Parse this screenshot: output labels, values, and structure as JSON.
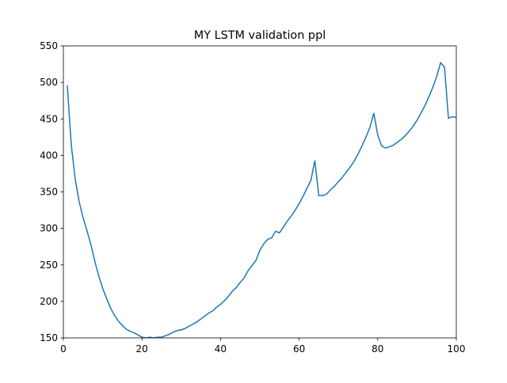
{
  "chart_data": {
    "type": "line",
    "title": "MY LSTM validation ppl",
    "x": [
      1,
      2,
      3,
      4,
      5,
      6,
      7,
      8,
      9,
      10,
      11,
      12,
      13,
      14,
      15,
      16,
      17,
      18,
      19,
      20,
      21,
      22,
      23,
      24,
      25,
      26,
      27,
      28,
      29,
      30,
      31,
      32,
      33,
      34,
      35,
      36,
      37,
      38,
      39,
      40,
      41,
      42,
      43,
      44,
      45,
      46,
      47,
      48,
      49,
      50,
      51,
      52,
      53,
      54,
      55,
      56,
      57,
      58,
      59,
      60,
      61,
      62,
      63,
      64,
      65,
      66,
      67,
      68,
      69,
      70,
      71,
      72,
      73,
      74,
      75,
      76,
      77,
      78,
      79,
      80,
      81,
      82,
      83,
      84,
      85,
      86,
      87,
      88,
      89,
      90,
      91,
      92,
      93,
      94,
      95,
      96,
      97,
      98,
      99,
      100
    ],
    "series": [
      {
        "name": "validation ppl",
        "color": "#1f77b4",
        "values": [
          496,
          415,
          368,
          337,
          315,
          297,
          278,
          255,
          235,
          218,
          204,
          191,
          181,
          173,
          167,
          162,
          159,
          157,
          154,
          151,
          150,
          151,
          150,
          151,
          151,
          153,
          155,
          158,
          160,
          161,
          163,
          166,
          169,
          172,
          176,
          180,
          184,
          187,
          192,
          196,
          201,
          207,
          214,
          219,
          226,
          232,
          242,
          249,
          256,
          270,
          279,
          285,
          287,
          296,
          294,
          302,
          310,
          317,
          325,
          334,
          344,
          355,
          366,
          393,
          345,
          345,
          347,
          353,
          358,
          364,
          370,
          377,
          384,
          392,
          402,
          413,
          425,
          438,
          458,
          428,
          413,
          410,
          412,
          414,
          418,
          422,
          427,
          433,
          440,
          448,
          458,
          468,
          480,
          493,
          508,
          527,
          521,
          451,
          453,
          452
        ]
      }
    ],
    "xlim": [
      0,
      100
    ],
    "ylim": [
      150,
      550
    ],
    "xticks": [
      0,
      20,
      40,
      60,
      80,
      100
    ],
    "yticks": [
      150,
      200,
      250,
      300,
      350,
      400,
      450,
      500,
      550
    ],
    "grid": false
  }
}
